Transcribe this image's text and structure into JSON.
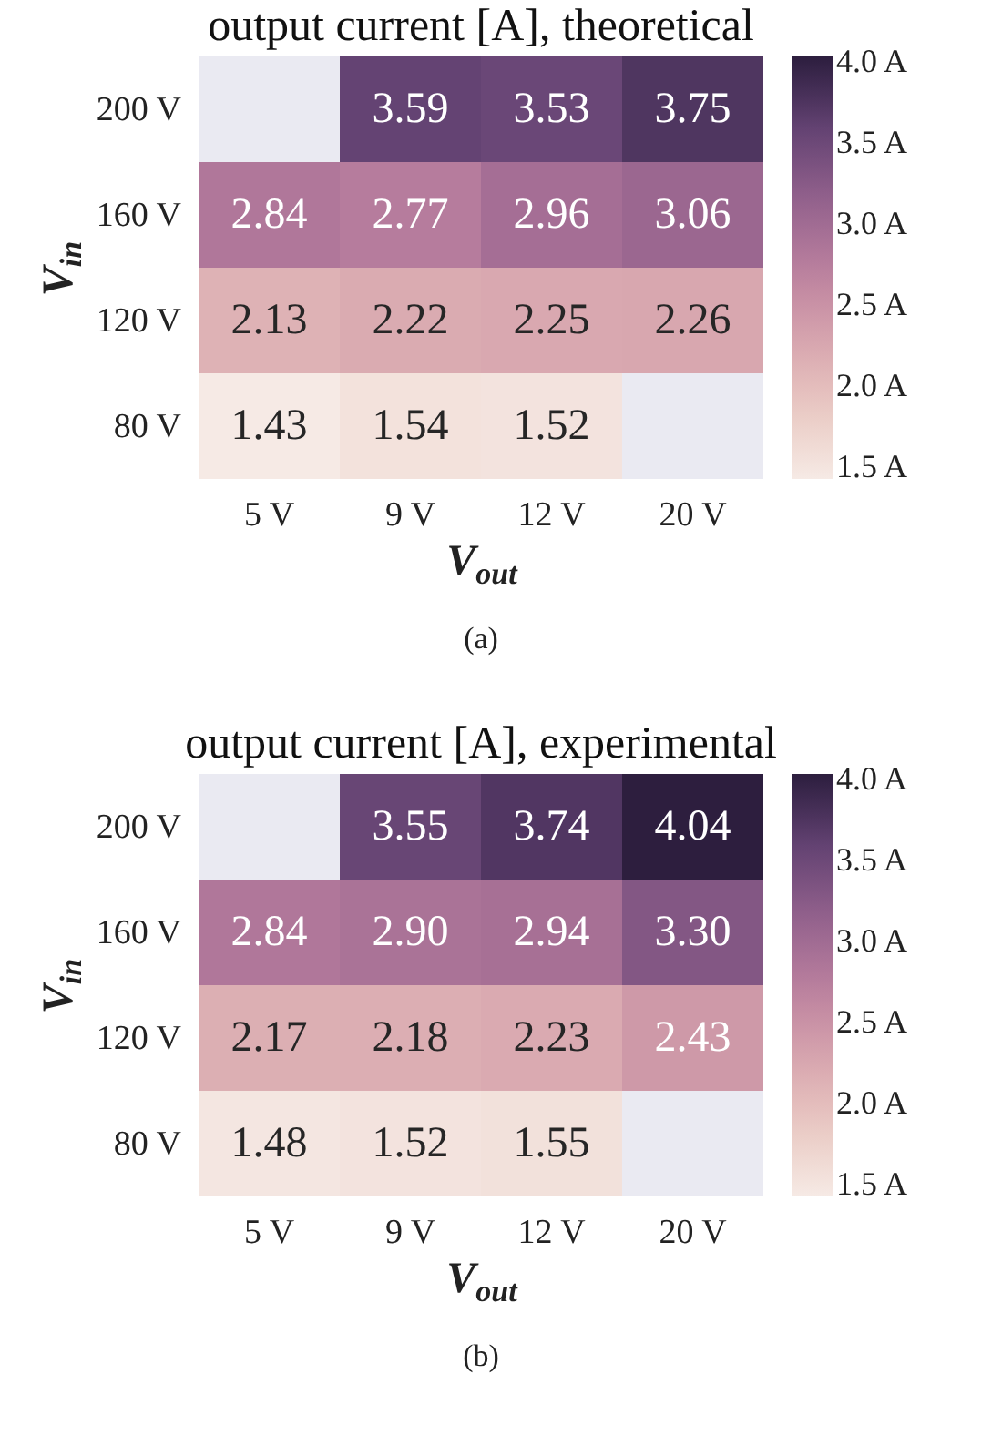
{
  "chart_data": [
    {
      "type": "heatmap",
      "title": "output current [A], theoretical",
      "xlabel": "V$_{out}$",
      "ylabel": "V$_{in}$",
      "categories": [
        "5 V",
        "9 V",
        "12 V",
        "20 V"
      ],
      "y_categories": [
        "200 V",
        "160 V",
        "120 V",
        "80 V"
      ],
      "cells": [
        [
          null,
          3.59,
          3.53,
          3.75
        ],
        [
          2.84,
          2.77,
          2.96,
          3.06
        ],
        [
          2.13,
          2.22,
          2.25,
          2.26
        ],
        [
          1.43,
          1.54,
          1.52,
          null
        ]
      ],
      "cell_labels": [
        [
          null,
          "3.59",
          "3.53",
          "3.75"
        ],
        [
          "2.84",
          "2.77",
          "2.96",
          "3.06"
        ],
        [
          "2.13",
          "2.22",
          "2.25",
          "2.26"
        ],
        [
          "1.43",
          "1.54",
          "1.52",
          null
        ]
      ],
      "clim": [
        1.43,
        4.04
      ],
      "cticks": [
        {
          "value": 1.5,
          "label": "1.5 A"
        },
        {
          "value": 2.0,
          "label": "2.0 A"
        },
        {
          "value": 2.5,
          "label": "2.5 A"
        },
        {
          "value": 3.0,
          "label": "3.0 A"
        },
        {
          "value": 3.5,
          "label": "3.5 A"
        },
        {
          "value": 4.0,
          "label": "4.0 A"
        }
      ],
      "annotations": [
        "(a)"
      ]
    },
    {
      "type": "heatmap",
      "title": "output current [A], experimental",
      "xlabel": "V$_{out}$",
      "ylabel": "V$_{in}$",
      "categories": [
        "5 V",
        "9 V",
        "12 V",
        "20 V"
      ],
      "y_categories": [
        "200 V",
        "160 V",
        "120 V",
        "80 V"
      ],
      "cells": [
        [
          null,
          3.55,
          3.74,
          4.04
        ],
        [
          2.84,
          2.9,
          2.94,
          3.3
        ],
        [
          2.17,
          2.18,
          2.23,
          2.43
        ],
        [
          1.48,
          1.52,
          1.55,
          null
        ]
      ],
      "cell_labels": [
        [
          null,
          "3.55",
          "3.74",
          "4.04"
        ],
        [
          "2.84",
          "2.90",
          "2.94",
          "3.30"
        ],
        [
          "2.17",
          "2.18",
          "2.23",
          "2.43"
        ],
        [
          "1.48",
          "1.52",
          "1.55",
          null
        ]
      ],
      "clim": [
        1.43,
        4.04
      ],
      "cticks": [
        {
          "value": 1.5,
          "label": "1.5 A"
        },
        {
          "value": 2.0,
          "label": "2.0 A"
        },
        {
          "value": 2.5,
          "label": "2.5 A"
        },
        {
          "value": 3.0,
          "label": "3.0 A"
        },
        {
          "value": 3.5,
          "label": "3.5 A"
        },
        {
          "value": 4.0,
          "label": "4.0 A"
        }
      ],
      "annotations": [
        "(b)"
      ]
    }
  ]
}
